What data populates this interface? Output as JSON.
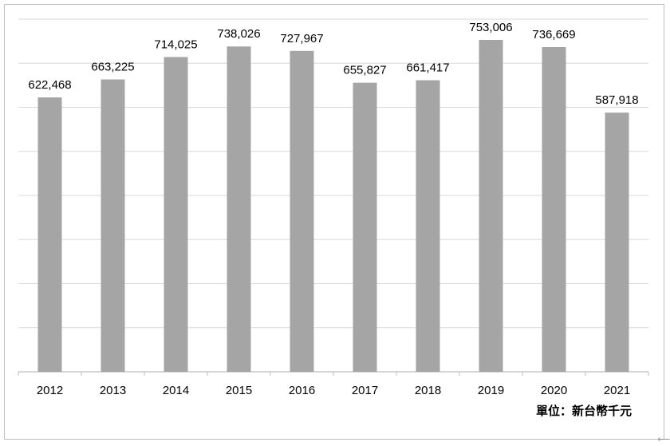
{
  "chart_data": {
    "type": "bar",
    "categories": [
      "2012",
      "2013",
      "2014",
      "2015",
      "2016",
      "2017",
      "2018",
      "2019",
      "2020",
      "2021"
    ],
    "values": [
      622468,
      663225,
      714025,
      738026,
      727967,
      655827,
      661417,
      753006,
      736669,
      587918
    ],
    "value_labels": [
      "622,468",
      "663,225",
      "714,025",
      "738,026",
      "727,967",
      "655,827",
      "661,417",
      "753,006",
      "736,669",
      "587,918"
    ],
    "ylim": [
      0,
      800000
    ],
    "grid": true,
    "bar_color": "#a5a5a5",
    "unit_label": "單位：新台幣千元"
  }
}
